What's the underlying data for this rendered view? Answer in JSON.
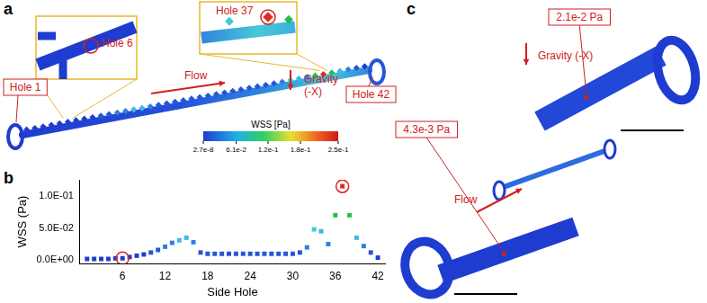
{
  "panel_labels": [
    "a",
    "b",
    "c"
  ],
  "panel_a": {
    "hole_labels": [
      "Hole 1",
      "Hole 6",
      "Hole 37",
      "Hole 42"
    ],
    "flow": "Flow",
    "gravity": "Gravity (-X)",
    "colorbar": {
      "title": "WSS [Pa]",
      "range": [
        2.7e-08,
        0.25
      ],
      "ticks": [
        {
          "value": 2.7e-08,
          "label": "2.7e-8"
        },
        {
          "value": 0.061,
          "label": "6.1e-2"
        },
        {
          "value": 0.12,
          "label": "1.2e-1"
        },
        {
          "value": 0.18,
          "label": "1.8e-1"
        },
        {
          "value": 0.25,
          "label": "2.5e-1"
        }
      ]
    }
  },
  "chart_data": {
    "type": "scatter",
    "x_label": "Side Hole",
    "y_label": "WSS (Pa)",
    "x": [
      1,
      2,
      3,
      4,
      5,
      6,
      7,
      8,
      9,
      10,
      11,
      12,
      13,
      14,
      15,
      16,
      17,
      18,
      19,
      20,
      21,
      22,
      23,
      24,
      25,
      26,
      27,
      28,
      29,
      30,
      31,
      32,
      33,
      34,
      35,
      36,
      37,
      38,
      39,
      40,
      41,
      42
    ],
    "series": [
      {
        "marker": "square",
        "values": [
          0.002,
          0.002,
          0.002,
          0.002,
          0.003,
          0.003,
          0.005,
          0.007,
          0.009,
          0.012,
          0.016,
          0.021,
          0.027,
          0.031,
          0.035,
          0.028,
          0.012,
          0.01,
          0.01,
          0.01,
          0.01,
          0.01,
          0.01,
          0.01,
          0.01,
          0.01,
          0.01,
          0.01,
          0.01,
          0.01,
          0.012,
          0.02,
          0.048,
          0.045,
          0.025,
          0.07,
          0.115,
          0.07,
          0.035,
          0.022,
          0.012,
          0.004
        ],
        "colors": [
          "#1f3cd1",
          "#1f3cd1",
          "#1f3cd1",
          "#1f3cd1",
          "#1f3cd1",
          "#1f3cd1",
          "#1f3cd1",
          "#1f3cd1",
          "#1f3cd1",
          "#2456dc",
          "#2456dc",
          "#2c7fe4",
          "#2c7fe4",
          "#44b4ec",
          "#44b4ec",
          "#2c7fe4",
          "#2456dc",
          "#2456dc",
          "#2456dc",
          "#2456dc",
          "#2456dc",
          "#2456dc",
          "#2456dc",
          "#2456dc",
          "#2456dc",
          "#2456dc",
          "#2456dc",
          "#2456dc",
          "#2456dc",
          "#2456dc",
          "#2456dc",
          "#2c7fe4",
          "#3ad0d8",
          "#3ab8e0",
          "#2c7fe4",
          "#22c04a",
          "#e2281e",
          "#22c04a",
          "#44b4ec",
          "#2c7fe4",
          "#2456dc",
          "#1f3cd1"
        ]
      },
      {
        "marker": "circle",
        "color": "#e02020",
        "values": [
          null,
          null,
          null,
          null,
          null,
          0.003,
          null,
          null,
          null,
          null,
          null,
          null,
          null,
          null,
          null,
          null,
          null,
          null,
          null,
          null,
          null,
          null,
          null,
          null,
          null,
          null,
          null,
          null,
          null,
          null,
          null,
          null,
          null,
          null,
          null,
          null,
          0.115,
          null,
          null,
          null,
          null,
          null
        ]
      }
    ],
    "xlim": [
      0,
      43
    ],
    "xticks": [
      6,
      12,
      18,
      24,
      30,
      36,
      42
    ],
    "ylim": [
      -0.005,
      0.125
    ],
    "yticks": [
      {
        "value": 0,
        "label": "0.0E+00"
      },
      {
        "value": 0.05,
        "label": "5.0E-02"
      },
      {
        "value": 0.1,
        "label": "1.0E-01"
      }
    ],
    "grid": false
  },
  "panel_c": {
    "annotations": [
      "2.1e-2 Pa",
      "4.3e-3 Pa"
    ],
    "flow": "Flow",
    "gravity": "Gravity (-X)"
  }
}
